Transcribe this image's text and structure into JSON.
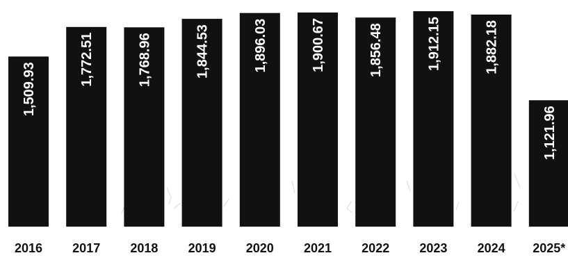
{
  "chart_data": {
    "type": "bar",
    "categories": [
      "2016",
      "2017",
      "2018",
      "2019",
      "2020",
      "2021",
      "2022",
      "2023",
      "2024",
      "2025*"
    ],
    "values": [
      1509.93,
      1772.51,
      1768.96,
      1844.53,
      1896.03,
      1900.67,
      1856.48,
      1912.15,
      1882.18,
      1121.96
    ],
    "value_labels": [
      "1,509.93",
      "1,772.51",
      "1,768.96",
      "1,844.53",
      "1,896.03",
      "1,900.67",
      "1,856.48",
      "1,912.15",
      "1,882.18",
      "1,121.96"
    ],
    "title": "",
    "xlabel": "",
    "ylabel": "",
    "ylim": [
      0,
      1950
    ],
    "grid": false,
    "legend": "none",
    "colors": {
      "bar": "#111111",
      "label_text": "#ffffff",
      "tick_text": "#111111"
    }
  }
}
